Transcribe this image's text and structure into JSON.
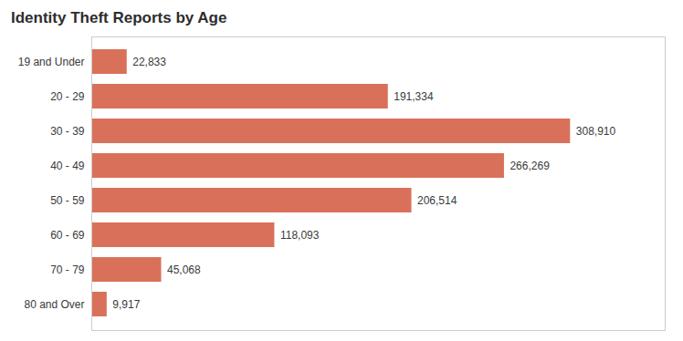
{
  "chart_data": {
    "type": "bar",
    "orientation": "horizontal",
    "title": "Identity Theft Reports by Age",
    "categories": [
      "19 and Under",
      "20 - 29",
      "30 - 39",
      "40 - 49",
      "50 - 59",
      "60 - 69",
      "70 - 79",
      "80 and Over"
    ],
    "values": [
      22833,
      191334,
      308910,
      266269,
      206514,
      118093,
      45068,
      9917
    ],
    "value_labels": [
      "22,833",
      "191,334",
      "308,910",
      "266,269",
      "206,514",
      "118,093",
      "45,068",
      "9,917"
    ],
    "color": "#d9715a",
    "xlim": [
      0,
      370000
    ],
    "data_labels": true,
    "tick_labels": "y",
    "grid": false
  }
}
